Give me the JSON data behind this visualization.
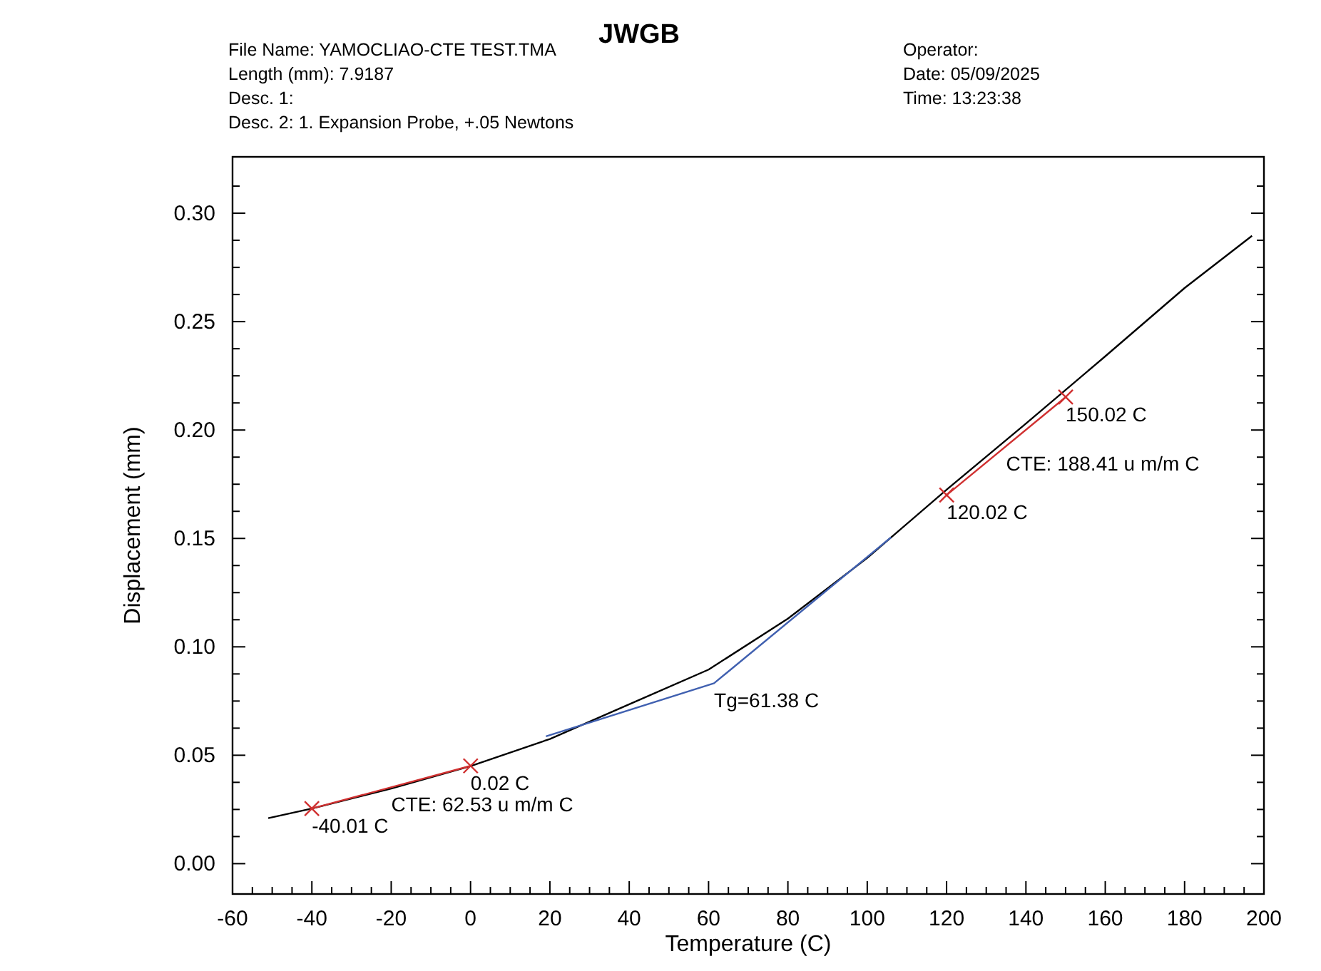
{
  "chart_data": {
    "type": "line",
    "title": "JWGB",
    "xlabel": "Temperature (C)",
    "ylabel": "Displacement (mm)",
    "xlim": [
      -60,
      200
    ],
    "ylim": [
      -0.014,
      0.326
    ],
    "xticks": [
      {
        "value": -60,
        "label": "-60"
      },
      {
        "value": -55,
        "label": null
      },
      {
        "value": -50,
        "label": null
      },
      {
        "value": -45,
        "label": null
      },
      {
        "value": -40,
        "label": "-40"
      },
      {
        "value": -35,
        "label": null
      },
      {
        "value": -30,
        "label": null
      },
      {
        "value": -25,
        "label": null
      },
      {
        "value": -20,
        "label": "-20"
      },
      {
        "value": -15,
        "label": null
      },
      {
        "value": -10,
        "label": null
      },
      {
        "value": -5,
        "label": null
      },
      {
        "value": 0,
        "label": "0"
      },
      {
        "value": 5,
        "label": null
      },
      {
        "value": 10,
        "label": null
      },
      {
        "value": 15,
        "label": null
      },
      {
        "value": 20,
        "label": "20"
      },
      {
        "value": 25,
        "label": null
      },
      {
        "value": 30,
        "label": null
      },
      {
        "value": 35,
        "label": null
      },
      {
        "value": 40,
        "label": "40"
      },
      {
        "value": 45,
        "label": null
      },
      {
        "value": 50,
        "label": null
      },
      {
        "value": 55,
        "label": null
      },
      {
        "value": 60,
        "label": "60"
      },
      {
        "value": 65,
        "label": null
      },
      {
        "value": 70,
        "label": null
      },
      {
        "value": 75,
        "label": null
      },
      {
        "value": 80,
        "label": "80"
      },
      {
        "value": 85,
        "label": null
      },
      {
        "value": 90,
        "label": null
      },
      {
        "value": 95,
        "label": null
      },
      {
        "value": 100,
        "label": "100"
      },
      {
        "value": 105,
        "label": null
      },
      {
        "value": 110,
        "label": null
      },
      {
        "value": 115,
        "label": null
      },
      {
        "value": 120,
        "label": "120"
      },
      {
        "value": 125,
        "label": null
      },
      {
        "value": 130,
        "label": null
      },
      {
        "value": 135,
        "label": null
      },
      {
        "value": 140,
        "label": "140"
      },
      {
        "value": 145,
        "label": null
      },
      {
        "value": 150,
        "label": null
      },
      {
        "value": 155,
        "label": null
      },
      {
        "value": 160,
        "label": "160"
      },
      {
        "value": 165,
        "label": null
      },
      {
        "value": 170,
        "label": null
      },
      {
        "value": 175,
        "label": null
      },
      {
        "value": 180,
        "label": "180"
      },
      {
        "value": 185,
        "label": null
      },
      {
        "value": 190,
        "label": null
      },
      {
        "value": 195,
        "label": null
      },
      {
        "value": 200,
        "label": "200"
      }
    ],
    "yticks": [
      {
        "value": 0,
        "label": "0.00"
      },
      {
        "value": 0.0125,
        "label": null
      },
      {
        "value": 0.025,
        "label": null
      },
      {
        "value": 0.0375,
        "label": null
      },
      {
        "value": 0.05,
        "label": "0.05"
      },
      {
        "value": 0.0625,
        "label": null
      },
      {
        "value": 0.075,
        "label": null
      },
      {
        "value": 0.0875,
        "label": null
      },
      {
        "value": 0.1,
        "label": "0.10"
      },
      {
        "value": 0.1125,
        "label": null
      },
      {
        "value": 0.125,
        "label": null
      },
      {
        "value": 0.1375,
        "label": null
      },
      {
        "value": 0.15,
        "label": "0.15"
      },
      {
        "value": 0.1625,
        "label": null
      },
      {
        "value": 0.175,
        "label": null
      },
      {
        "value": 0.1875,
        "label": null
      },
      {
        "value": 0.2,
        "label": "0.20"
      },
      {
        "value": 0.2125,
        "label": null
      },
      {
        "value": 0.225,
        "label": null
      },
      {
        "value": 0.2375,
        "label": null
      },
      {
        "value": 0.25,
        "label": "0.25"
      },
      {
        "value": 0.2625,
        "label": null
      },
      {
        "value": 0.275,
        "label": null
      },
      {
        "value": 0.2875,
        "label": null
      },
      {
        "value": 0.3,
        "label": "0.30"
      },
      {
        "value": 0.3125,
        "label": null
      }
    ],
    "grid": false,
    "series": [
      {
        "color": "#000000",
        "marker": "none",
        "x": [
          -51,
          -40,
          -20,
          0,
          20,
          40,
          60,
          80,
          100,
          120,
          140,
          160,
          180,
          197
        ],
        "values": [
          0.021,
          0.0254,
          0.0346,
          0.045,
          0.0575,
          0.0735,
          0.0895,
          0.113,
          0.141,
          0.1725,
          0.203,
          0.234,
          0.2655,
          0.2896
        ]
      },
      {
        "color": "#4060b0",
        "marker": "none",
        "x": [
          19,
          61.38,
          106
        ],
        "values": [
          0.0587,
          0.0832,
          0.1505
        ]
      },
      {
        "color": "#d03030",
        "marker": "cross",
        "x": [
          -40.01,
          0.02
        ],
        "values": [
          0.0254,
          0.0451
        ]
      },
      {
        "color": "#d03030",
        "marker": "cross",
        "x": [
          120.02,
          150.02
        ],
        "values": [
          0.17,
          0.2152
        ]
      }
    ],
    "annotations": [
      "File Name: YAMOCLIAO-CTE TEST.TMA",
      "Length (mm): 7.9187",
      "Desc. 1:",
      "Desc. 2: 1. Expansion Probe, +.05 Newtons",
      "Operator:",
      "Date: 05/09/2025",
      "Time:  13:23:38",
      {
        "text": "-40.01 C",
        "x": -40.01,
        "y": 0.0254
      },
      {
        "text": "0.02 C",
        "x": 0.02,
        "y": 0.0451
      },
      {
        "text": "CTE: 62.53 u m/m C",
        "x": -20,
        "y": 0.0353
      },
      {
        "text": "Tg=61.38 C",
        "x": 61.38,
        "y": 0.0832
      },
      {
        "text": "120.02 C",
        "x": 120.02,
        "y": 0.17
      },
      {
        "text": "150.02 C",
        "x": 150.02,
        "y": 0.2152
      },
      {
        "text": "CTE: 188.41 u m/m C",
        "x": 135.02,
        "y": 0.1926
      }
    ]
  }
}
